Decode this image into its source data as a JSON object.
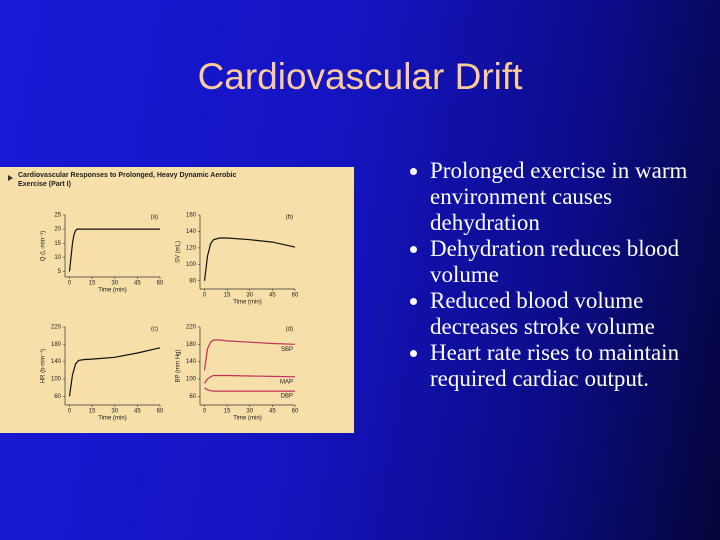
{
  "title": "Cardiovascular Drift",
  "bullets": [
    "Prolonged exercise in warm environment causes dehydration",
    "Dehydration reduces blood volume",
    "Reduced blood volume decreases stroke volume",
    "Heart rate rises to maintain required cardiac output."
  ],
  "figure": {
    "title": "Cardiovascular Responses to Prolonged, Heavy Dynamic Aerobic Exercise (Part I)",
    "panels": [
      {
        "type": "line",
        "label": "(a)",
        "y_label": "Q (L·min⁻¹)",
        "x_label": "Time (min)",
        "xlim": [
          -3,
          60
        ],
        "xticks": [
          0,
          15,
          30,
          45,
          60
        ],
        "ylim": [
          3,
          25
        ],
        "yticks": [
          5,
          10,
          15,
          20,
          25
        ],
        "x": [
          0,
          1,
          2,
          3,
          4,
          5,
          8,
          15,
          30,
          45,
          60
        ],
        "series": [
          {
            "color": "#111111",
            "values": [
              5,
              10,
              15,
              18,
              19.5,
              20,
              20,
              20,
              20,
              20,
              20
            ]
          }
        ]
      },
      {
        "type": "line",
        "label": "(b)",
        "y_label": "SV (mL)",
        "x_label": "Time (min)",
        "xlim": [
          -3,
          60
        ],
        "xticks": [
          0,
          15,
          30,
          45,
          60
        ],
        "ylim": [
          70,
          160
        ],
        "yticks": [
          80,
          100,
          120,
          140,
          160
        ],
        "x": [
          0,
          2,
          4,
          6,
          10,
          15,
          30,
          45,
          60
        ],
        "series": [
          {
            "color": "#111111",
            "values": [
              80,
              110,
              125,
              130,
              132,
              132,
              130,
              127,
              121
            ]
          }
        ]
      },
      {
        "type": "line",
        "label": "(c)",
        "y_label": "HR (b·min⁻¹)",
        "x_label": "Time (min)",
        "xlim": [
          -3,
          60
        ],
        "xticks": [
          0,
          15,
          30,
          45,
          60
        ],
        "ylim": [
          40,
          220
        ],
        "yticks": [
          60,
          100,
          140,
          180,
          220
        ],
        "x": [
          0,
          2,
          4,
          6,
          10,
          15,
          30,
          45,
          60
        ],
        "series": [
          {
            "color": "#111111",
            "values": [
              60,
              110,
              135,
              143,
              145,
              146,
              150,
              160,
              172
            ]
          }
        ]
      },
      {
        "type": "line",
        "label": "(d)",
        "y_label": "BP (mm Hg)",
        "x_label": "Time (min)",
        "xlim": [
          -3,
          60
        ],
        "xticks": [
          0,
          15,
          30,
          45,
          60
        ],
        "ylim": [
          40,
          220
        ],
        "yticks": [
          60,
          100,
          140,
          180,
          220
        ],
        "x": [
          0,
          2,
          4,
          6,
          10,
          15,
          30,
          45,
          60
        ],
        "series": [
          {
            "name": "SBP",
            "color": "#c0305a",
            "values": [
              120,
              170,
              185,
              190,
              190,
              188,
              185,
              182,
              180
            ]
          },
          {
            "name": "MAP",
            "color": "#c0305a",
            "values": [
              90,
              100,
              105,
              108,
              108,
              108,
              107,
              106,
              105
            ]
          },
          {
            "name": "DBP",
            "color": "#c0305a",
            "values": [
              80,
              75,
              73,
              72,
              72,
              72,
              72,
              72,
              72
            ]
          }
        ]
      }
    ]
  }
}
